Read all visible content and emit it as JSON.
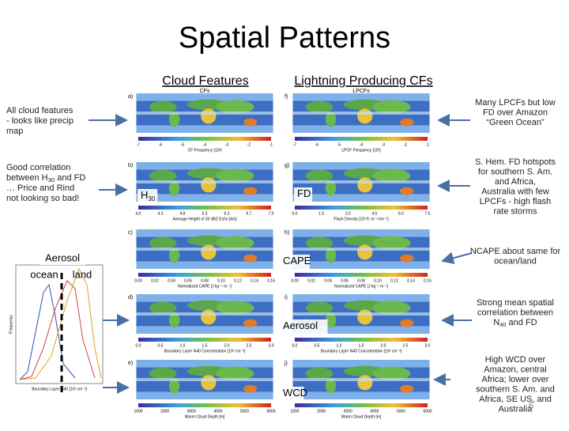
{
  "header": {
    "title": "Spatial Patterns",
    "columns": [
      "Cloud Features",
      "Lightning Producing CFs"
    ]
  },
  "left_notes": [
    {
      "before": "All cloud features - looks like precip map",
      "sub": "",
      "after": ""
    },
    {
      "before": "Good correlation between H",
      "sub": "30",
      "after": " and FD … Price and Rind not looking so bad!"
    }
  ],
  "right_notes": [
    {
      "before": "Many LPCFs but low FD over Amazon “Green Ocean”",
      "sub": "",
      "after": ""
    },
    {
      "before": "S. Hem. FD hotspots for southern S. Am. and Africa, Australia with few LPCFs - high flash rate storms",
      "sub": "",
      "after": ""
    },
    {
      "before": "NCAPE about same for ocean/land",
      "sub": "",
      "after": ""
    },
    {
      "before": "Strong mean spatial correlation between N",
      "sub": "40",
      "after": " and FD"
    },
    {
      "before": "High WCD over Amazon, central Africa; lower over southern S. Am. and Africa, SE US, and Australia",
      "sub": "",
      "after": ""
    }
  ],
  "map_labels": [
    {
      "main": "H",
      "sub": "30"
    },
    {
      "main": "FD",
      "sub": ""
    },
    {
      "main": "CAPE",
      "sub": ""
    },
    {
      "main": "Aerosol",
      "sub": ""
    },
    {
      "main": "WCD",
      "sub": ""
    }
  ],
  "panels": [
    {
      "letter": "a)",
      "name": "CFs",
      "caption": "CF Frequency [10³]",
      "ticks": [
        "-7",
        "-6",
        "-5",
        "-4",
        "-3",
        "-2",
        "-1"
      ]
    },
    {
      "letter": "f)",
      "name": "LPCFs",
      "caption": "LPCF Frequency [10³]",
      "ticks": [
        "-7",
        "-6",
        "-5",
        "-4",
        "-3",
        "-2",
        "-1"
      ]
    },
    {
      "letter": "b)",
      "name": "",
      "caption": "Average Height of 30 dBZ Echo [km]",
      "ticks": [
        "4.0",
        "4.3",
        "4.8",
        "5.3",
        "6.3",
        "6.7",
        "7.0"
      ]
    },
    {
      "letter": "g)",
      "name": "",
      "caption": "Flash Density [10³ fl. m⁻² km⁻²]",
      "ticks": [
        "0.0",
        "1.5",
        "3.0",
        "4.5",
        "6.0",
        "7.5"
      ]
    },
    {
      "letter": "c)",
      "name": "",
      "caption": "Normalized CAPE [J kg⁻¹ m⁻¹]",
      "ticks": [
        "0.00",
        "0.02",
        "0.04",
        "0.06",
        "0.08",
        "0.10",
        "0.12",
        "0.14",
        "0.16"
      ]
    },
    {
      "letter": "h)",
      "name": "",
      "caption": "Normalized CAPE [J kg⁻¹ m⁻¹]",
      "ticks": [
        "0.00",
        "0.02",
        "0.04",
        "0.06",
        "0.08",
        "0.10",
        "0.12",
        "0.14",
        "0.16"
      ]
    },
    {
      "letter": "d)",
      "name": "",
      "caption": "Boundary Layer N40 Concentration [10³ cm⁻³]",
      "ticks": [
        "0.0",
        "0.5",
        "1.0",
        "1.5",
        "2.0",
        "2.5",
        "3.0"
      ]
    },
    {
      "letter": "i)",
      "name": "",
      "caption": "Boundary Layer N40 Concentration [10³ cm⁻³]",
      "ticks": [
        "0.0",
        "0.5",
        "1.0",
        "1.5",
        "2.0",
        "2.5",
        "3.0"
      ]
    },
    {
      "letter": "e)",
      "name": "",
      "caption": "Warm Cloud Depth [m]",
      "ticks": [
        "1000",
        "2000",
        "3000",
        "4000",
        "5000",
        "6000"
      ]
    },
    {
      "letter": "j)",
      "name": "",
      "caption": "Warm Cloud Depth [m]",
      "ticks": [
        "1000",
        "2000",
        "3000",
        "4000",
        "5000",
        "6000"
      ]
    }
  ],
  "histogram": {
    "title": "Aerosol",
    "left": "ocean",
    "right": "land",
    "ylabel": "Frequency",
    "xlabel": "Boundary Layer N40 [10³ cm⁻³]"
  },
  "page_number": "6"
}
